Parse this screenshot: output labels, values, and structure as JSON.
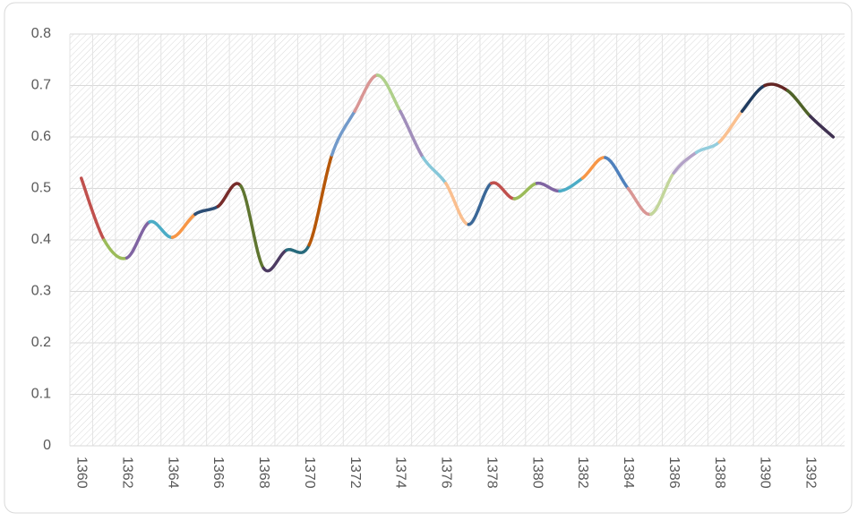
{
  "chart_data": {
    "type": "line",
    "categories": [
      "1360",
      null,
      "1362",
      null,
      "1364",
      null,
      "1366",
      null,
      "1368",
      null,
      "1370",
      null,
      "1372",
      null,
      "1374",
      null,
      "1376",
      null,
      "1378",
      null,
      "1380",
      null,
      "1382",
      null,
      "1384",
      null,
      "1386",
      null,
      "1388",
      null,
      "1390",
      null,
      "1392",
      null
    ],
    "values": [
      0.52,
      0.4,
      0.365,
      0.435,
      0.405,
      0.45,
      0.465,
      0.505,
      0.345,
      0.38,
      0.39,
      0.565,
      0.65,
      0.72,
      0.65,
      0.56,
      0.51,
      0.43,
      0.51,
      0.48,
      0.51,
      0.495,
      0.52,
      0.56,
      0.5,
      0.45,
      0.53,
      0.57,
      0.59,
      0.65,
      0.7,
      0.69,
      0.64,
      0.6
    ],
    "segment_colors": [
      "#c0504d",
      "#9bbb59",
      "#8064a2",
      "#4bacc6",
      "#f79646",
      "#2c4d75",
      "#772c2a",
      "#5f7530",
      "#4d3b62",
      "#276a7c",
      "#b65708",
      "#729aca",
      "#d99694",
      "#afd08a",
      "#a18ebb",
      "#86c7d9",
      "#fabf8f",
      "#3a6797",
      "#c0504d",
      "#9bbb59",
      "#8064a2",
      "#4bacc6",
      "#f79646",
      "#4f81bd",
      "#d99694",
      "#c3d69b",
      "#b3a2c7",
      "#93cddd",
      "#fac090",
      "#1f3b5f",
      "#632523",
      "#4f6228",
      "#3f3151"
    ],
    "ylim": [
      0,
      0.8
    ],
    "yticks": [
      0,
      0.1,
      0.2,
      0.3,
      0.4,
      0.5,
      0.6,
      0.7,
      0.8
    ],
    "grid": true,
    "smooth": true
  }
}
